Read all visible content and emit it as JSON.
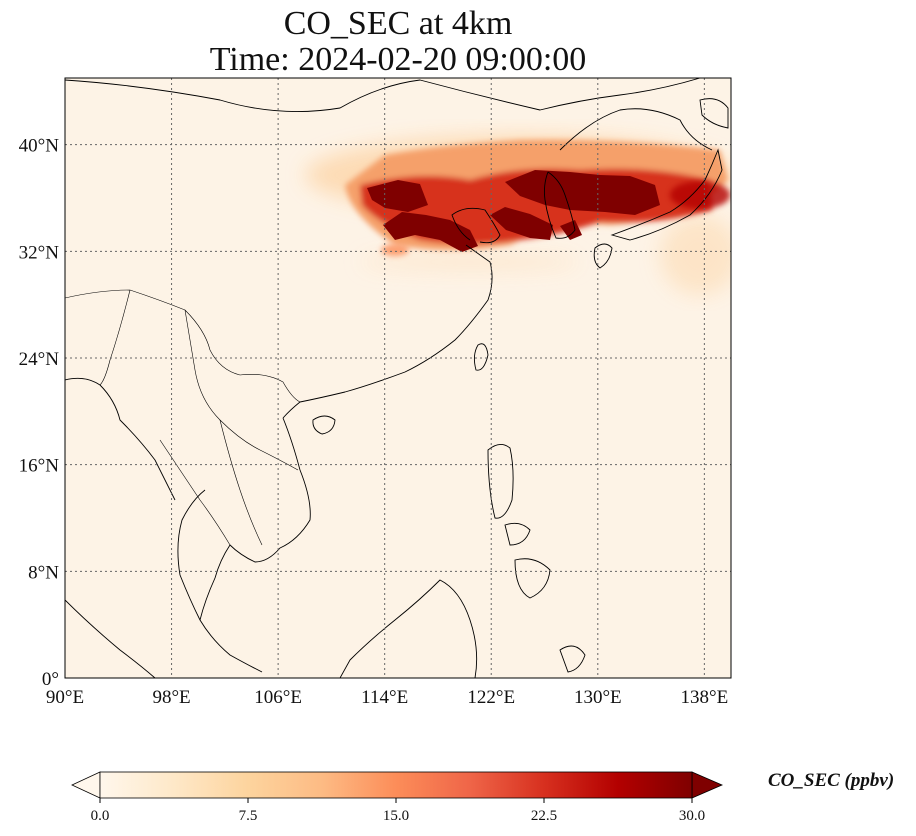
{
  "title": {
    "line1": "CO_SEC at 4km",
    "line2": "Time: 2024-02-20 09:00:00"
  },
  "map": {
    "lon_range": [
      90,
      140
    ],
    "lat_range": [
      0,
      45
    ],
    "lon_ticks": [
      {
        "value": 90,
        "label": "90°E"
      },
      {
        "value": 98,
        "label": "98°E"
      },
      {
        "value": 106,
        "label": "106°E"
      },
      {
        "value": 114,
        "label": "114°E"
      },
      {
        "value": 122,
        "label": "122°E"
      },
      {
        "value": 130,
        "label": "130°E"
      },
      {
        "value": 138,
        "label": "138°E"
      }
    ],
    "lat_ticks": [
      {
        "value": 0,
        "label": "0°"
      },
      {
        "value": 8,
        "label": "8°N"
      },
      {
        "value": 16,
        "label": "16°N"
      },
      {
        "value": 24,
        "label": "24°N"
      },
      {
        "value": 32,
        "label": "32°N"
      },
      {
        "value": 40,
        "label": "40°N"
      }
    ],
    "gridlines": true,
    "colormap": "OrRd",
    "background_color": "#fdf3e6"
  },
  "colorbar": {
    "label": "CO_SEC (ppbv)",
    "min": 0,
    "max": 30,
    "extend": "both",
    "ticks": [
      {
        "value": 0,
        "label": "0.0"
      },
      {
        "value": 7.5,
        "label": "7.5"
      },
      {
        "value": 15,
        "label": "15.0"
      },
      {
        "value": 22.5,
        "label": "22.5"
      },
      {
        "value": 30,
        "label": "30.0"
      }
    ],
    "colors": [
      "#fff7ec",
      "#fee8c8",
      "#fdd49e",
      "#fdbb84",
      "#fc8d59",
      "#ef6548",
      "#d7301f",
      "#b30000",
      "#7f0000"
    ]
  },
  "plumes": [
    {
      "lon": 116,
      "lat": 37.0,
      "value": 30
    },
    {
      "lon": 119.5,
      "lat": 35.5,
      "value": 30
    },
    {
      "lon": 124.5,
      "lat": 34.5,
      "value": 30
    },
    {
      "lon": 127,
      "lat": 37.5,
      "value": 30
    },
    {
      "lon": 131,
      "lat": 36.5,
      "value": 30
    },
    {
      "lon": 135,
      "lat": 36.5,
      "value": 22
    },
    {
      "lon": 122,
      "lat": 39.5,
      "value": 14
    },
    {
      "lon": 130,
      "lat": 39.5,
      "value": 14
    },
    {
      "lon": 137,
      "lat": 34.5,
      "value": 8
    }
  ]
}
